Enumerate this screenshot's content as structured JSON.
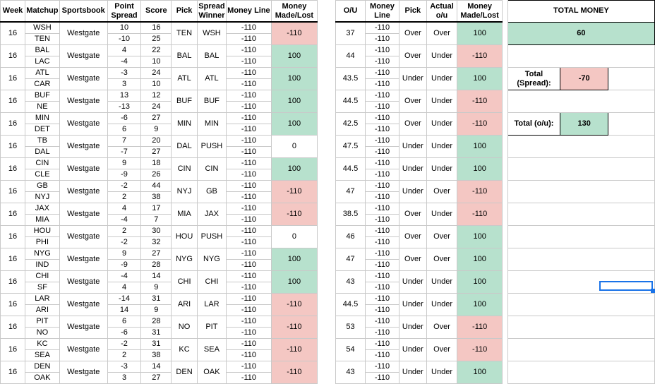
{
  "colors": {
    "loss": "#f4c7c3",
    "win": "#b7e1cd",
    "selection": "#1a73e8",
    "gridline": "#c9c9c9"
  },
  "headers": {
    "week": "Week",
    "matchup": "Matchup",
    "sportsbook": "Sportsbook",
    "point_spread": "Point Spread",
    "score": "Score",
    "pick": "Pick",
    "spread_winner": "Spread Winner",
    "money_line": "Money Line",
    "money_made_lost": "Money Made/Lost",
    "ou": "O/U",
    "ou_money_line": "Money Line",
    "ou_pick": "Pick",
    "actual_ou": "Actual o/u",
    "ou_money_made_lost": "Money Made/Lost"
  },
  "summary": {
    "total_money_label": "TOTAL MONEY",
    "total_money_value": "60",
    "total_spread_label": "Total (Spread):",
    "total_spread_value": "-70",
    "total_ou_label": "Total (o/u):",
    "total_ou_value": "130"
  },
  "games": [
    {
      "week": "16",
      "team1": "WSH",
      "team2": "TEN",
      "sportsbook": "Westgate",
      "spread1": "10",
      "spread2": "-10",
      "score1": "16",
      "score2": "25",
      "pick": "TEN",
      "spread_winner": "WSH",
      "ml1": "-110",
      "ml2": "-110",
      "money": "-110",
      "money_result": "loss",
      "ou": "37",
      "ou_ml1": "-110",
      "ou_ml2": "-110",
      "ou_pick": "Over",
      "actual": "Over",
      "ou_money": "100",
      "ou_result": "win"
    },
    {
      "week": "16",
      "team1": "BAL",
      "team2": "LAC",
      "sportsbook": "Westgate",
      "spread1": "4",
      "spread2": "-4",
      "score1": "22",
      "score2": "10",
      "pick": "BAL",
      "spread_winner": "BAL",
      "ml1": "-110",
      "ml2": "-110",
      "money": "100",
      "money_result": "win",
      "ou": "44",
      "ou_ml1": "-110",
      "ou_ml2": "-110",
      "ou_pick": "Over",
      "actual": "Under",
      "ou_money": "-110",
      "ou_result": "loss"
    },
    {
      "week": "16",
      "team1": "ATL",
      "team2": "CAR",
      "sportsbook": "Westgate",
      "spread1": "-3",
      "spread2": "3",
      "score1": "24",
      "score2": "10",
      "pick": "ATL",
      "spread_winner": "ATL",
      "ml1": "-110",
      "ml2": "-110",
      "money": "100",
      "money_result": "win",
      "ou": "43.5",
      "ou_ml1": "-110",
      "ou_ml2": "-110",
      "ou_pick": "Under",
      "actual": "Under",
      "ou_money": "100",
      "ou_result": "win"
    },
    {
      "week": "16",
      "team1": "BUF",
      "team2": "NE",
      "sportsbook": "Westgate",
      "spread1": "13",
      "spread2": "-13",
      "score1": "12",
      "score2": "24",
      "pick": "BUF",
      "spread_winner": "BUF",
      "ml1": "-110",
      "ml2": "-110",
      "money": "100",
      "money_result": "win",
      "ou": "44.5",
      "ou_ml1": "-110",
      "ou_ml2": "-110",
      "ou_pick": "Over",
      "actual": "Under",
      "ou_money": "-110",
      "ou_result": "loss"
    },
    {
      "week": "16",
      "team1": "MIN",
      "team2": "DET",
      "sportsbook": "Westgate",
      "spread1": "-6",
      "spread2": "6",
      "score1": "27",
      "score2": "9",
      "pick": "MIN",
      "spread_winner": "MIN",
      "ml1": "-110",
      "ml2": "-110",
      "money": "100",
      "money_result": "win",
      "ou": "42.5",
      "ou_ml1": "-110",
      "ou_ml2": "-110",
      "ou_pick": "Over",
      "actual": "Under",
      "ou_money": "-110",
      "ou_result": "loss"
    },
    {
      "week": "16",
      "team1": "TB",
      "team2": "DAL",
      "sportsbook": "Westgate",
      "spread1": "7",
      "spread2": "-7",
      "score1": "20",
      "score2": "27",
      "pick": "DAL",
      "spread_winner": "PUSH",
      "ml1": "-110",
      "ml2": "-110",
      "money": "0",
      "money_result": "push",
      "ou": "47.5",
      "ou_ml1": "-110",
      "ou_ml2": "-110",
      "ou_pick": "Under",
      "actual": "Under",
      "ou_money": "100",
      "ou_result": "win"
    },
    {
      "week": "16",
      "team1": "CIN",
      "team2": "CLE",
      "sportsbook": "Westgate",
      "spread1": "9",
      "spread2": "-9",
      "score1": "18",
      "score2": "26",
      "pick": "CIN",
      "spread_winner": "CIN",
      "ml1": "-110",
      "ml2": "-110",
      "money": "100",
      "money_result": "win",
      "ou": "44.5",
      "ou_ml1": "-110",
      "ou_ml2": "-110",
      "ou_pick": "Under",
      "actual": "Under",
      "ou_money": "100",
      "ou_result": "win"
    },
    {
      "week": "16",
      "team1": "GB",
      "team2": "NYJ",
      "sportsbook": "Westgate",
      "spread1": "-2",
      "spread2": "2",
      "score1": "44",
      "score2": "38",
      "pick": "NYJ",
      "spread_winner": "GB",
      "ml1": "-110",
      "ml2": "-110",
      "money": "-110",
      "money_result": "loss",
      "ou": "47",
      "ou_ml1": "-110",
      "ou_ml2": "-110",
      "ou_pick": "Under",
      "actual": "Over",
      "ou_money": "-110",
      "ou_result": "loss"
    },
    {
      "week": "16",
      "team1": "JAX",
      "team2": "MIA",
      "sportsbook": "Westgate",
      "spread1": "4",
      "spread2": "-4",
      "score1": "17",
      "score2": "7",
      "pick": "MIA",
      "spread_winner": "JAX",
      "ml1": "-110",
      "ml2": "-110",
      "money": "-110",
      "money_result": "loss",
      "ou": "38.5",
      "ou_ml1": "-110",
      "ou_ml2": "-110",
      "ou_pick": "Over",
      "actual": "Under",
      "ou_money": "-110",
      "ou_result": "loss"
    },
    {
      "week": "16",
      "team1": "HOU",
      "team2": "PHI",
      "sportsbook": "Westgate",
      "spread1": "2",
      "spread2": "-2",
      "score1": "30",
      "score2": "32",
      "pick": "HOU",
      "spread_winner": "PUSH",
      "ml1": "-110",
      "ml2": "-110",
      "money": "0",
      "money_result": "push",
      "ou": "46",
      "ou_ml1": "-110",
      "ou_ml2": "-110",
      "ou_pick": "Over",
      "actual": "Over",
      "ou_money": "100",
      "ou_result": "win"
    },
    {
      "week": "16",
      "team1": "NYG",
      "team2": "IND",
      "sportsbook": "Westgate",
      "spread1": "9",
      "spread2": "-9",
      "score1": "27",
      "score2": "28",
      "pick": "NYG",
      "spread_winner": "NYG",
      "ml1": "-110",
      "ml2": "-110",
      "money": "100",
      "money_result": "win",
      "ou": "47",
      "ou_ml1": "-110",
      "ou_ml2": "-110",
      "ou_pick": "Over",
      "actual": "Over",
      "ou_money": "100",
      "ou_result": "win"
    },
    {
      "week": "16",
      "team1": "CHI",
      "team2": "SF",
      "sportsbook": "Westgate",
      "spread1": "-4",
      "spread2": "4",
      "score1": "14",
      "score2": "9",
      "pick": "CHI",
      "spread_winner": "CHI",
      "ml1": "-110",
      "ml2": "-110",
      "money": "100",
      "money_result": "win",
      "ou": "43",
      "ou_ml1": "-110",
      "ou_ml2": "-110",
      "ou_pick": "Under",
      "actual": "Under",
      "ou_money": "100",
      "ou_result": "win"
    },
    {
      "week": "16",
      "team1": "LAR",
      "team2": "ARI",
      "sportsbook": "Westgate",
      "spread1": "-14",
      "spread2": "14",
      "score1": "31",
      "score2": "9",
      "pick": "ARI",
      "spread_winner": "LAR",
      "ml1": "-110",
      "ml2": "-110",
      "money": "-110",
      "money_result": "loss",
      "ou": "44.5",
      "ou_ml1": "-110",
      "ou_ml2": "-110",
      "ou_pick": "Under",
      "actual": "Under",
      "ou_money": "100",
      "ou_result": "win"
    },
    {
      "week": "16",
      "team1": "PIT",
      "team2": "NO",
      "sportsbook": "Westgate",
      "spread1": "6",
      "spread2": "-6",
      "score1": "28",
      "score2": "31",
      "pick": "NO",
      "spread_winner": "PIT",
      "ml1": "-110",
      "ml2": "-110",
      "money": "-110",
      "money_result": "loss",
      "ou": "53",
      "ou_ml1": "-110",
      "ou_ml2": "-110",
      "ou_pick": "Under",
      "actual": "Over",
      "ou_money": "-110",
      "ou_result": "loss"
    },
    {
      "week": "16",
      "team1": "KC",
      "team2": "SEA",
      "sportsbook": "Westgate",
      "spread1": "-2",
      "spread2": "2",
      "score1": "31",
      "score2": "38",
      "pick": "KC",
      "spread_winner": "SEA",
      "ml1": "-110",
      "ml2": "-110",
      "money": "-110",
      "money_result": "loss",
      "ou": "54",
      "ou_ml1": "-110",
      "ou_ml2": "-110",
      "ou_pick": "Under",
      "actual": "Over",
      "ou_money": "-110",
      "ou_result": "loss"
    },
    {
      "week": "16",
      "team1": "DEN",
      "team2": "OAK",
      "sportsbook": "Westgate",
      "spread1": "-3",
      "spread2": "3",
      "score1": "14",
      "score2": "27",
      "pick": "DEN",
      "spread_winner": "OAK",
      "ml1": "-110",
      "ml2": "-110",
      "money": "-110",
      "money_result": "loss",
      "ou": "43",
      "ou_ml1": "-110",
      "ou_ml2": "-110",
      "ou_pick": "Under",
      "actual": "Under",
      "ou_money": "100",
      "ou_result": "win"
    }
  ]
}
